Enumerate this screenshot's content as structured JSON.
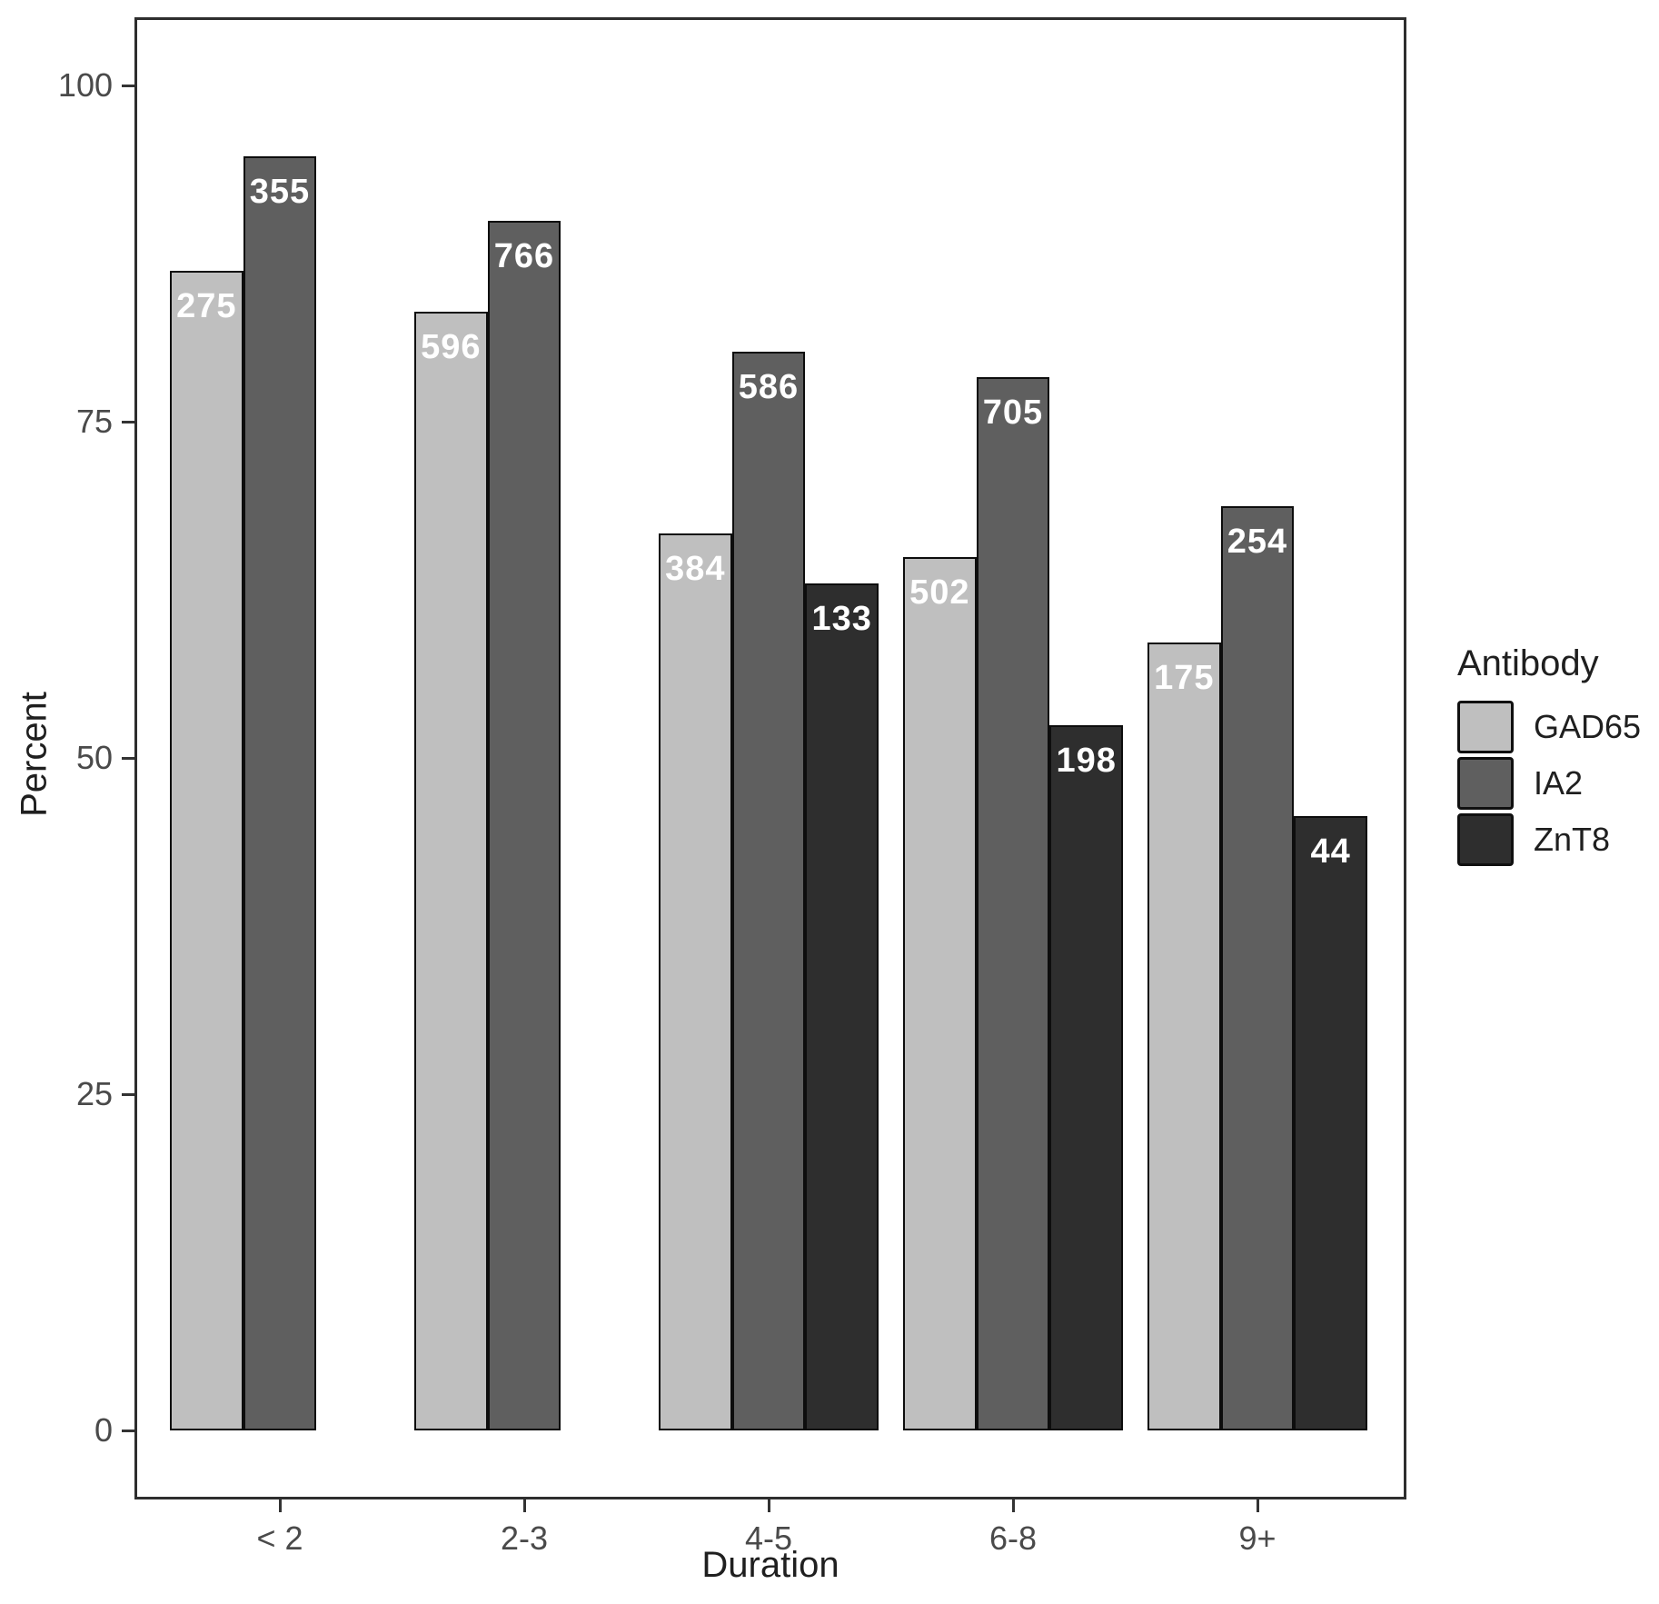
{
  "chart_data": {
    "type": "bar",
    "title": "",
    "xlabel": "Duration",
    "ylabel": "Percent",
    "legend_title": "Antibody",
    "ylim": [
      0,
      100
    ],
    "yticks": [
      0,
      25,
      50,
      75,
      100
    ],
    "grid": "off",
    "legend_position": "right",
    "categories": [
      "< 2",
      "2-3",
      "4-5",
      "6-8",
      "9+"
    ],
    "series": [
      {
        "name": "GAD65",
        "color": "#bfbfbf",
        "percents": [
          86.2,
          83.2,
          66.7,
          64.9,
          58.6
        ],
        "count_labels": [
          "275",
          "596",
          "384",
          "502",
          "175"
        ]
      },
      {
        "name": "IA2",
        "color": "#5f5f5f",
        "percents": [
          94.7,
          89.9,
          80.2,
          78.3,
          68.7
        ],
        "count_labels": [
          "355",
          "766",
          "586",
          "705",
          "254"
        ]
      },
      {
        "name": "ZnT8",
        "color": "#2e2e2e",
        "percents": [
          null,
          null,
          63.0,
          52.4,
          45.7
        ],
        "count_labels": [
          null,
          null,
          "133",
          "198",
          "44"
        ]
      }
    ]
  }
}
